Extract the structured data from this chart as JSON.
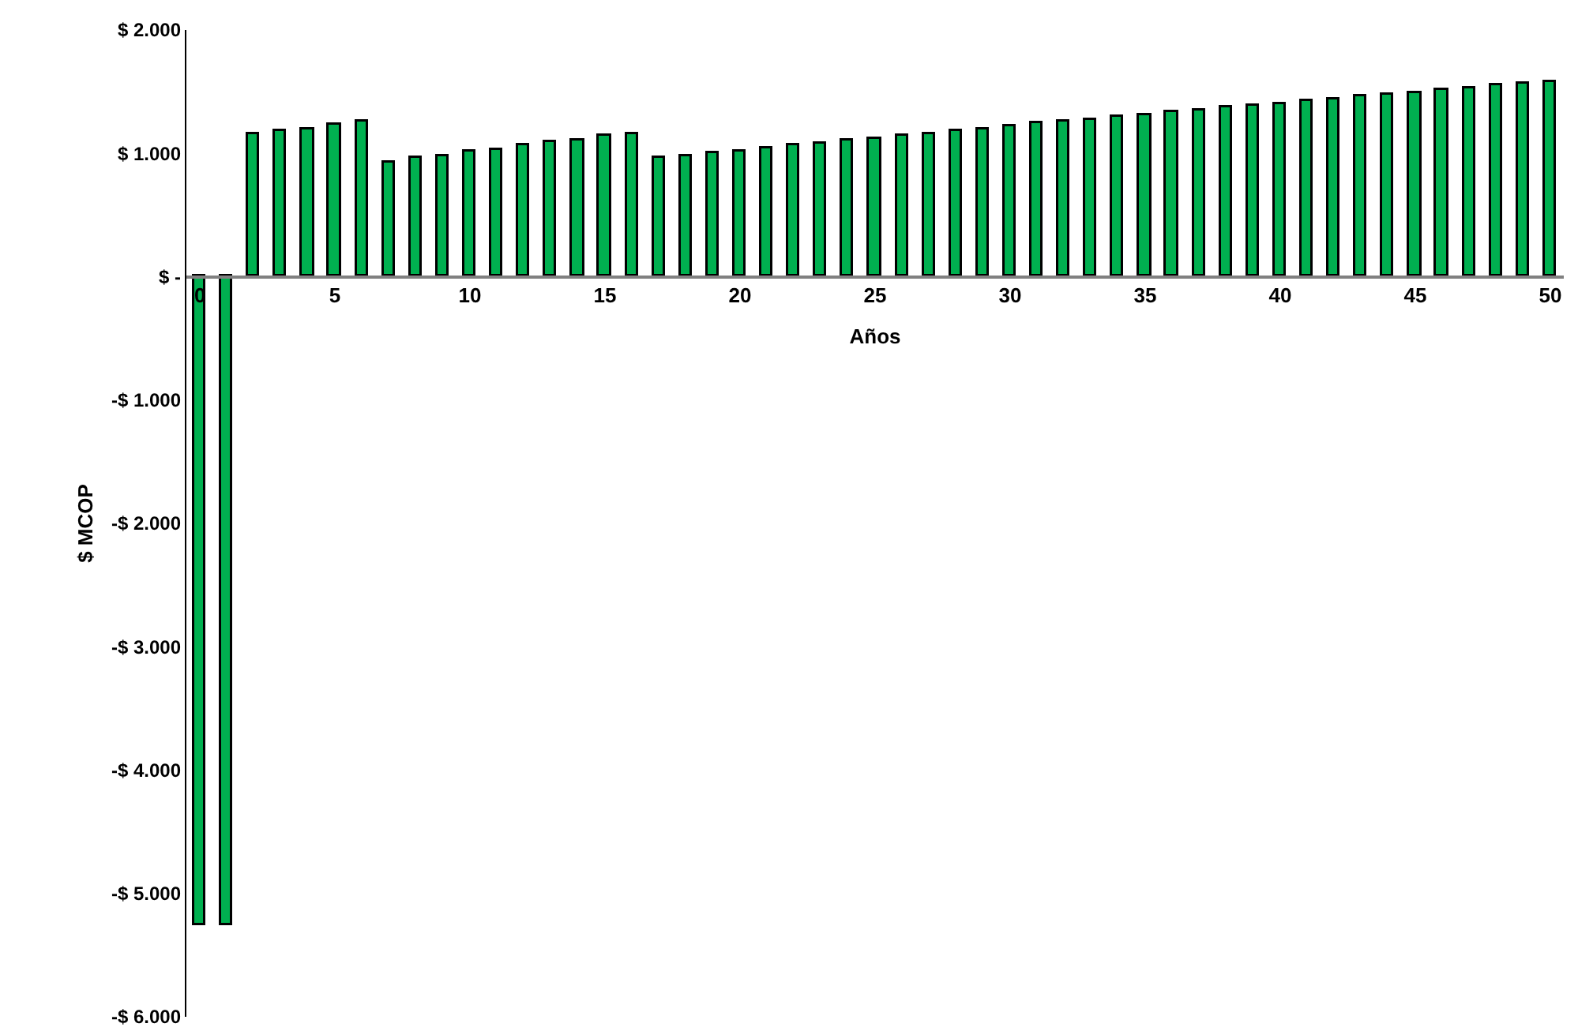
{
  "chart_data": {
    "type": "bar",
    "xlabel": "Años",
    "ylabel": "$ MCOP",
    "x": [
      0,
      1,
      2,
      3,
      4,
      5,
      6,
      7,
      8,
      9,
      10,
      11,
      12,
      13,
      14,
      15,
      16,
      17,
      18,
      19,
      20,
      21,
      22,
      23,
      24,
      25,
      26,
      27,
      28,
      29,
      30,
      31,
      32,
      33,
      34,
      35,
      36,
      37,
      38,
      39,
      40,
      41,
      42,
      43,
      44,
      45,
      46,
      47,
      48,
      49,
      50
    ],
    "values": [
      -5260,
      -5260,
      1150,
      1180,
      1200,
      1230,
      1260,
      930,
      960,
      980,
      1010,
      1030,
      1060,
      1090,
      1110,
      1140,
      1160,
      960,
      980,
      1000,
      1020,
      1040,
      1060,
      1080,
      1100,
      1120,
      1140,
      1160,
      1180,
      1200,
      1220,
      1240,
      1260,
      1270,
      1290,
      1310,
      1330,
      1350,
      1370,
      1390,
      1400,
      1420,
      1440,
      1460,
      1480,
      1490,
      1510,
      1530,
      1550,
      1560,
      1580
    ],
    "color": "#00b050",
    "xlim": [
      -0.5,
      50.5
    ],
    "xticks": [
      0,
      5,
      10,
      15,
      20,
      25,
      30,
      35,
      40,
      45,
      50
    ],
    "ylim": [
      -6000,
      2000
    ],
    "yticks": [
      {
        "value": 2000,
        "label": "$ 2.000"
      },
      {
        "value": 1000,
        "label": "$ 1.000"
      },
      {
        "value": 0,
        "label": "$ -"
      },
      {
        "value": -1000,
        "label": "-$ 1.000"
      },
      {
        "value": -2000,
        "label": "-$ 2.000"
      },
      {
        "value": -3000,
        "label": "-$ 3.000"
      },
      {
        "value": -4000,
        "label": "-$ 4.000"
      },
      {
        "value": -5000,
        "label": "-$ 5.000"
      },
      {
        "value": -6000,
        "label": "-$ 6.000"
      }
    ],
    "grid": false,
    "legend": false
  }
}
